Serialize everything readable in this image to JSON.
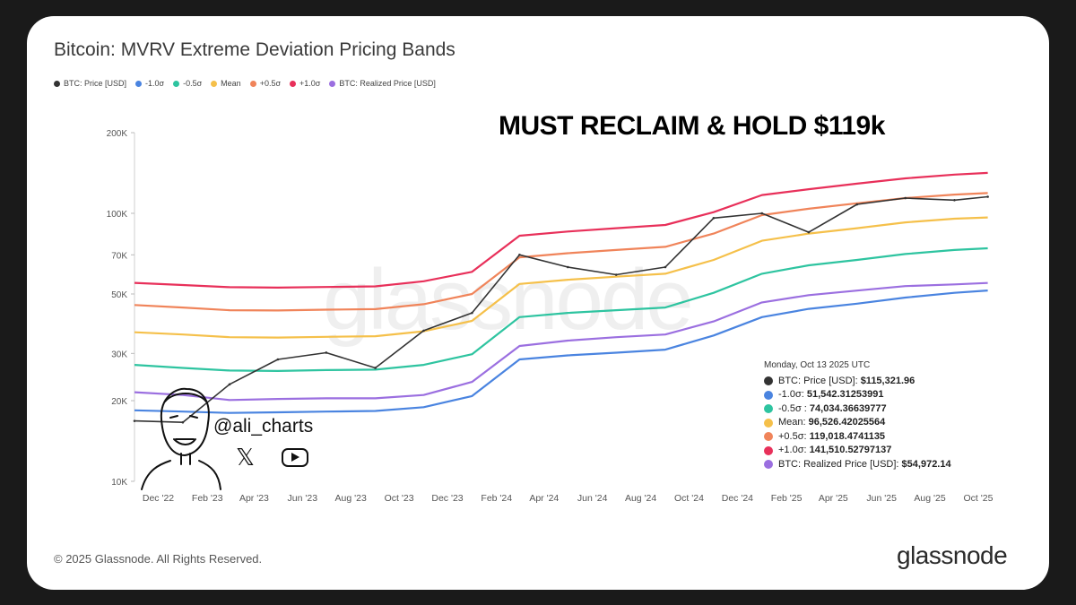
{
  "chart_data": {
    "type": "line",
    "title": "Bitcoin: MVRV Extreme Deviation Pricing Bands",
    "annotation": "MUST RECLAIM & HOLD $119k",
    "y_scale": "log",
    "ylim": [
      10000,
      200000
    ],
    "y_ticks": [
      10000,
      20000,
      30000,
      50000,
      70000,
      100000,
      200000
    ],
    "y_tick_labels": [
      "10K",
      "20K",
      "30K",
      "50K",
      "70K",
      "100K",
      "200K"
    ],
    "x_tick_labels": [
      "Dec '22",
      "Feb '23",
      "Apr '23",
      "Jun '23",
      "Aug '23",
      "Oct '23",
      "Dec '23",
      "Feb '24",
      "Apr '24",
      "Jun '24",
      "Aug '24",
      "Oct '24",
      "Dec '24",
      "Feb '25",
      "Apr '25",
      "Jun '25",
      "Aug '25",
      "Oct '25"
    ],
    "x": [
      "2022-11",
      "2023-01",
      "2023-03",
      "2023-05",
      "2023-07",
      "2023-09",
      "2023-11",
      "2024-01",
      "2024-03",
      "2024-05",
      "2024-07",
      "2024-09",
      "2024-11",
      "2025-01",
      "2025-03",
      "2025-05",
      "2025-07",
      "2025-09",
      "2025-10-13"
    ],
    "legend_position": "top-left",
    "series": [
      {
        "name": "BTC: Price [USD]",
        "color": "#333333",
        "values": [
          16800,
          16600,
          23000,
          28500,
          30200,
          26500,
          36500,
          42500,
          70000,
          63000,
          59000,
          63000,
          96000,
          100000,
          85000,
          108000,
          114000,
          112000,
          115321.96
        ]
      },
      {
        "name": "-1.0σ",
        "color": "#4a84e0",
        "values": [
          18400,
          18200,
          18000,
          18100,
          18200,
          18300,
          18900,
          20800,
          28500,
          29500,
          30200,
          31000,
          35000,
          41000,
          44000,
          46000,
          48500,
          50500,
          51542.31
        ]
      },
      {
        "name": "-0.5σ",
        "color": "#2ec4a0",
        "values": [
          27200,
          26500,
          25900,
          25800,
          26000,
          26100,
          27200,
          29800,
          41000,
          42500,
          43500,
          44500,
          50500,
          59500,
          64000,
          67000,
          70500,
          73000,
          74034.37
        ]
      },
      {
        "name": "Mean",
        "color": "#f5c04a",
        "values": [
          36000,
          35300,
          34500,
          34400,
          34600,
          34800,
          36300,
          39700,
          54500,
          56500,
          58000,
          59500,
          67000,
          79000,
          84000,
          88000,
          92500,
          95500,
          96526.42
        ]
      },
      {
        "name": "+0.5σ",
        "color": "#f0845a",
        "values": [
          45500,
          44500,
          43500,
          43400,
          43700,
          43900,
          45800,
          50000,
          68500,
          71000,
          73000,
          75000,
          84000,
          98500,
          104000,
          109000,
          114000,
          117500,
          119018.47
        ]
      },
      {
        "name": "+1.0σ",
        "color": "#e8305a",
        "values": [
          55000,
          54000,
          53000,
          52800,
          53100,
          53400,
          55800,
          60500,
          82500,
          85500,
          88000,
          90500,
          101000,
          117000,
          123000,
          129000,
          135000,
          139500,
          141510.53
        ]
      },
      {
        "name": "BTC: Realized Price [USD]",
        "color": "#9b6fe0",
        "values": [
          21500,
          21000,
          20100,
          20300,
          20400,
          20400,
          21000,
          23500,
          32000,
          33500,
          34500,
          35300,
          39500,
          46500,
          49500,
          51500,
          53500,
          54300,
          54972.14
        ]
      }
    ],
    "tooltip": {
      "date": "Monday, Oct 13 2025 UTC",
      "rows": [
        {
          "label": "BTC: Price [USD]:",
          "value": "$115,321.96",
          "color": "#333333"
        },
        {
          "label": "-1.0σ:",
          "value": "51,542.31253991",
          "color": "#4a84e0"
        },
        {
          "label": "-0.5σ :",
          "value": "74,034.36639777",
          "color": "#2ec4a0"
        },
        {
          "label": "Mean:",
          "value": "96,526.42025564",
          "color": "#f5c04a"
        },
        {
          "label": "+0.5σ:",
          "value": "119,018.4741135",
          "color": "#f0845a"
        },
        {
          "label": "+1.0σ:",
          "value": "141,510.52797137",
          "color": "#e8305a"
        },
        {
          "label": "BTC: Realized Price [USD]:",
          "value": "$54,972.14",
          "color": "#9b6fe0"
        }
      ]
    }
  },
  "watermark": "glassnode",
  "footer": "© 2025 Glassnode. All Rights Reserved.",
  "brand": "glassnode",
  "author": {
    "handle": "@ali_charts",
    "icons": [
      "x-icon",
      "youtube-icon"
    ]
  }
}
